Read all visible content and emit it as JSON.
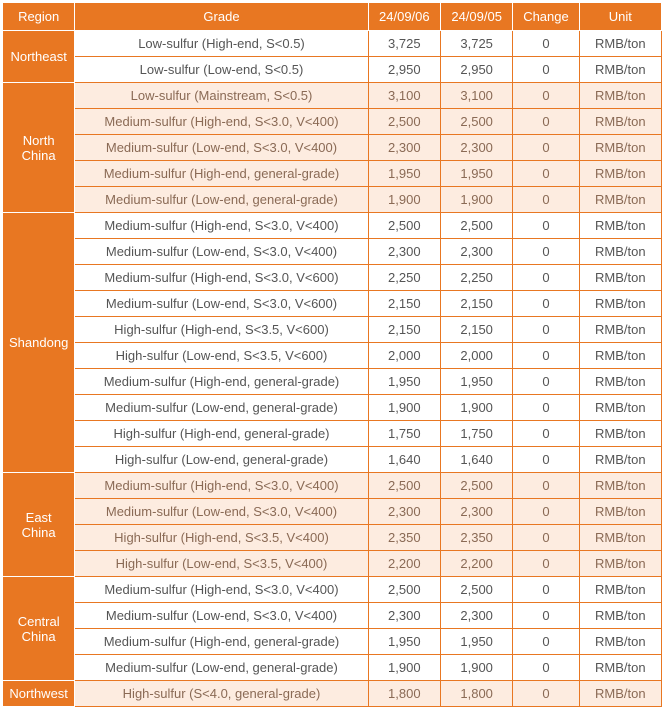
{
  "headers": {
    "region": "Region",
    "grade": "Grade",
    "d1": "24/09/06",
    "d2": "24/09/05",
    "change": "Change",
    "unit": "Unit"
  },
  "colors": {
    "header_bg": "#e87722",
    "header_fg": "#ffffff",
    "border": "#e87722",
    "alt_bg": "#fdece0",
    "alt_fg": "#8a6a55",
    "norm_fg": "#555555"
  },
  "regions": [
    {
      "name": "Northeast",
      "label_lines": [
        "Northeast"
      ],
      "alt": false,
      "rows": [
        {
          "grade": "Low-sulfur (High-end, S<0.5)",
          "d1": "3,725",
          "d2": "3,725",
          "change": "0",
          "unit": "RMB/ton"
        },
        {
          "grade": "Low-sulfur (Low-end, S<0.5)",
          "d1": "2,950",
          "d2": "2,950",
          "change": "0",
          "unit": "RMB/ton"
        }
      ]
    },
    {
      "name": "North China",
      "label_lines": [
        "North",
        "China"
      ],
      "alt": true,
      "rows": [
        {
          "grade": "Low-sulfur (Mainstream, S<0.5)",
          "d1": "3,100",
          "d2": "3,100",
          "change": "0",
          "unit": "RMB/ton"
        },
        {
          "grade": "Medium-sulfur (High-end, S<3.0, V<400)",
          "d1": "2,500",
          "d2": "2,500",
          "change": "0",
          "unit": "RMB/ton"
        },
        {
          "grade": "Medium-sulfur (Low-end, S<3.0, V<400)",
          "d1": "2,300",
          "d2": "2,300",
          "change": "0",
          "unit": "RMB/ton"
        },
        {
          "grade": "Medium-sulfur (High-end, general-grade)",
          "d1": "1,950",
          "d2": "1,950",
          "change": "0",
          "unit": "RMB/ton"
        },
        {
          "grade": "Medium-sulfur (Low-end, general-grade)",
          "d1": "1,900",
          "d2": "1,900",
          "change": "0",
          "unit": "RMB/ton"
        }
      ]
    },
    {
      "name": "Shandong",
      "label_lines": [
        "Shandong"
      ],
      "alt": false,
      "rows": [
        {
          "grade": "Medium-sulfur (High-end, S<3.0, V<400)",
          "d1": "2,500",
          "d2": "2,500",
          "change": "0",
          "unit": "RMB/ton"
        },
        {
          "grade": "Medium-sulfur (Low-end, S<3.0, V<400)",
          "d1": "2,300",
          "d2": "2,300",
          "change": "0",
          "unit": "RMB/ton"
        },
        {
          "grade": "Medium-sulfur (High-end, S<3.0, V<600)",
          "d1": "2,250",
          "d2": "2,250",
          "change": "0",
          "unit": "RMB/ton"
        },
        {
          "grade": "Medium-sulfur (Low-end, S<3.0, V<600)",
          "d1": "2,150",
          "d2": "2,150",
          "change": "0",
          "unit": "RMB/ton"
        },
        {
          "grade": "High-sulfur (High-end, S<3.5, V<600)",
          "d1": "2,150",
          "d2": "2,150",
          "change": "0",
          "unit": "RMB/ton"
        },
        {
          "grade": "High-sulfur (Low-end, S<3.5, V<600)",
          "d1": "2,000",
          "d2": "2,000",
          "change": "0",
          "unit": "RMB/ton"
        },
        {
          "grade": "Medium-sulfur (High-end, general-grade)",
          "d1": "1,950",
          "d2": "1,950",
          "change": "0",
          "unit": "RMB/ton"
        },
        {
          "grade": "Medium-sulfur (Low-end, general-grade)",
          "d1": "1,900",
          "d2": "1,900",
          "change": "0",
          "unit": "RMB/ton"
        },
        {
          "grade": "High-sulfur (High-end, general-grade)",
          "d1": "1,750",
          "d2": "1,750",
          "change": "0",
          "unit": "RMB/ton"
        },
        {
          "grade": "High-sulfur (Low-end, general-grade)",
          "d1": "1,640",
          "d2": "1,640",
          "change": "0",
          "unit": "RMB/ton"
        }
      ]
    },
    {
      "name": "East China",
      "label_lines": [
        "East China"
      ],
      "alt": true,
      "rows": [
        {
          "grade": "Medium-sulfur (High-end, S<3.0, V<400)",
          "d1": "2,500",
          "d2": "2,500",
          "change": "0",
          "unit": "RMB/ton"
        },
        {
          "grade": "Medium-sulfur (Low-end, S<3.0, V<400)",
          "d1": "2,300",
          "d2": "2,300",
          "change": "0",
          "unit": "RMB/ton"
        },
        {
          "grade": "High-sulfur (High-end, S<3.5, V<400)",
          "d1": "2,350",
          "d2": "2,350",
          "change": "0",
          "unit": "RMB/ton"
        },
        {
          "grade": "High-sulfur (Low-end, S<3.5, V<400)",
          "d1": "2,200",
          "d2": "2,200",
          "change": "0",
          "unit": "RMB/ton"
        }
      ]
    },
    {
      "name": "Central China",
      "label_lines": [
        "Central",
        "China"
      ],
      "alt": false,
      "rows": [
        {
          "grade": "Medium-sulfur (High-end, S<3.0, V<400)",
          "d1": "2,500",
          "d2": "2,500",
          "change": "0",
          "unit": "RMB/ton"
        },
        {
          "grade": "Medium-sulfur (Low-end, S<3.0, V<400)",
          "d1": "2,300",
          "d2": "2,300",
          "change": "0",
          "unit": "RMB/ton"
        },
        {
          "grade": "Medium-sulfur (High-end, general-grade)",
          "d1": "1,950",
          "d2": "1,950",
          "change": "0",
          "unit": "RMB/ton"
        },
        {
          "grade": "Medium-sulfur (Low-end, general-grade)",
          "d1": "1,900",
          "d2": "1,900",
          "change": "0",
          "unit": "RMB/ton"
        }
      ]
    },
    {
      "name": "Northwest",
      "label_lines": [
        "Northwest"
      ],
      "alt": true,
      "rows": [
        {
          "grade": "High-sulfur (S<4.0, general-grade)",
          "d1": "1,800",
          "d2": "1,800",
          "change": "0",
          "unit": "RMB/ton"
        }
      ]
    }
  ]
}
